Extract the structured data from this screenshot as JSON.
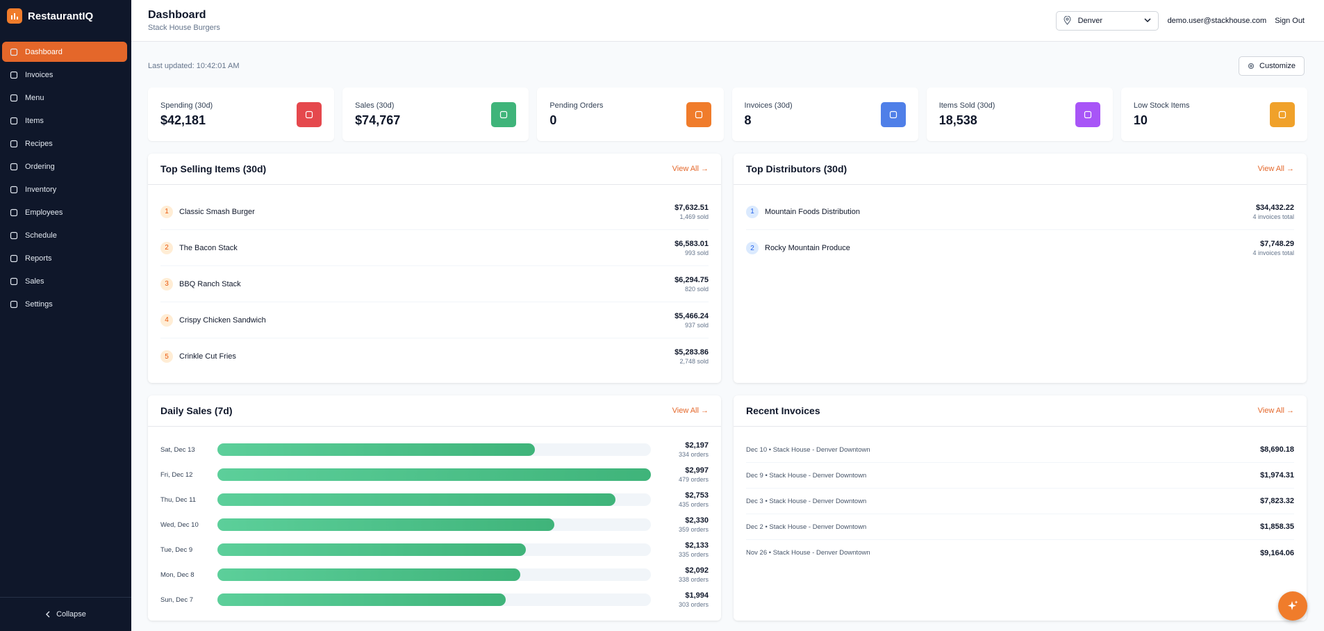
{
  "brand": "RestaurantIQ",
  "nav": [
    "Dashboard",
    "Invoices",
    "Menu",
    "Items",
    "Recipes",
    "Ordering",
    "Inventory",
    "Employees",
    "Schedule",
    "Reports",
    "Sales",
    "Settings"
  ],
  "collapse": "Collapse",
  "header": {
    "title": "Dashboard",
    "subtitle": "Stack House Burgers",
    "location": "Denver",
    "user": "demo.user@stackhouse.com",
    "sign_out": "Sign Out"
  },
  "last_updated": "Last updated: 10:42:01 AM",
  "customize": "Customize",
  "stats": [
    {
      "label": "Spending (30d)",
      "value": "$42,181",
      "color": "#e5484d"
    },
    {
      "label": "Sales (30d)",
      "value": "$74,767",
      "color": "#3fb47a"
    },
    {
      "label": "Pending Orders",
      "value": "0",
      "color": "#f07c2b"
    },
    {
      "label": "Invoices (30d)",
      "value": "8",
      "color": "#4f7fe8"
    },
    {
      "label": "Items Sold (30d)",
      "value": "18,538",
      "color": "#a855f7"
    },
    {
      "label": "Low Stock Items",
      "value": "10",
      "color": "#f0a12a"
    }
  ],
  "top_selling": {
    "title": "Top Selling Items (30d)",
    "view_all": "View All →",
    "items": [
      {
        "rank": 1,
        "name": "Classic Smash Burger",
        "amount": "$7,632.51",
        "sub": "1,469 sold"
      },
      {
        "rank": 2,
        "name": "The Bacon Stack",
        "amount": "$6,583.01",
        "sub": "993 sold"
      },
      {
        "rank": 3,
        "name": "BBQ Ranch Stack",
        "amount": "$6,294.75",
        "sub": "820 sold"
      },
      {
        "rank": 4,
        "name": "Crispy Chicken Sandwich",
        "amount": "$5,466.24",
        "sub": "937 sold"
      },
      {
        "rank": 5,
        "name": "Crinkle Cut Fries",
        "amount": "$5,283.86",
        "sub": "2,748 sold"
      }
    ]
  },
  "top_distributors": {
    "title": "Top Distributors (30d)",
    "view_all": "View All →",
    "items": [
      {
        "rank": 1,
        "name": "Mountain Foods Distribution",
        "amount": "$34,432.22",
        "sub": "4 invoices total"
      },
      {
        "rank": 2,
        "name": "Rocky Mountain Produce",
        "amount": "$7,748.29",
        "sub": "4 invoices total"
      }
    ]
  },
  "daily_sales": {
    "title": "Daily Sales (7d)",
    "view_all": "View All →",
    "days": [
      "Sat, Dec 13",
      "Fri, Dec 12",
      "Thu, Dec 11",
      "Wed, Dec 10",
      "Tue, Dec 9",
      "Mon, Dec 8",
      "Sun, Dec 7"
    ],
    "values": [
      2197,
      2997,
      2753,
      2330,
      2133,
      2092,
      1994
    ],
    "value_labels": [
      "$2,197",
      "$2,997",
      "$2,753",
      "$2,330",
      "$2,133",
      "$2,092",
      "$1,994"
    ],
    "orders": [
      "334 orders",
      "479 orders",
      "435 orders",
      "359 orders",
      "335 orders",
      "338 orders",
      "303 orders"
    ]
  },
  "recent_invoices": {
    "title": "Recent Invoices",
    "view_all": "View All →",
    "rows": [
      {
        "label": "Dec 10 • Stack House - Denver Downtown",
        "amount": "$8,690.18"
      },
      {
        "label": "Dec 9 • Stack House - Denver Downtown",
        "amount": "$1,974.31"
      },
      {
        "label": "Dec 3 • Stack House - Denver Downtown",
        "amount": "$7,823.32"
      },
      {
        "label": "Dec 2 • Stack House - Denver Downtown",
        "amount": "$1,858.35"
      },
      {
        "label": "Nov 26 • Stack House - Denver Downtown",
        "amount": "$9,164.06"
      }
    ]
  }
}
